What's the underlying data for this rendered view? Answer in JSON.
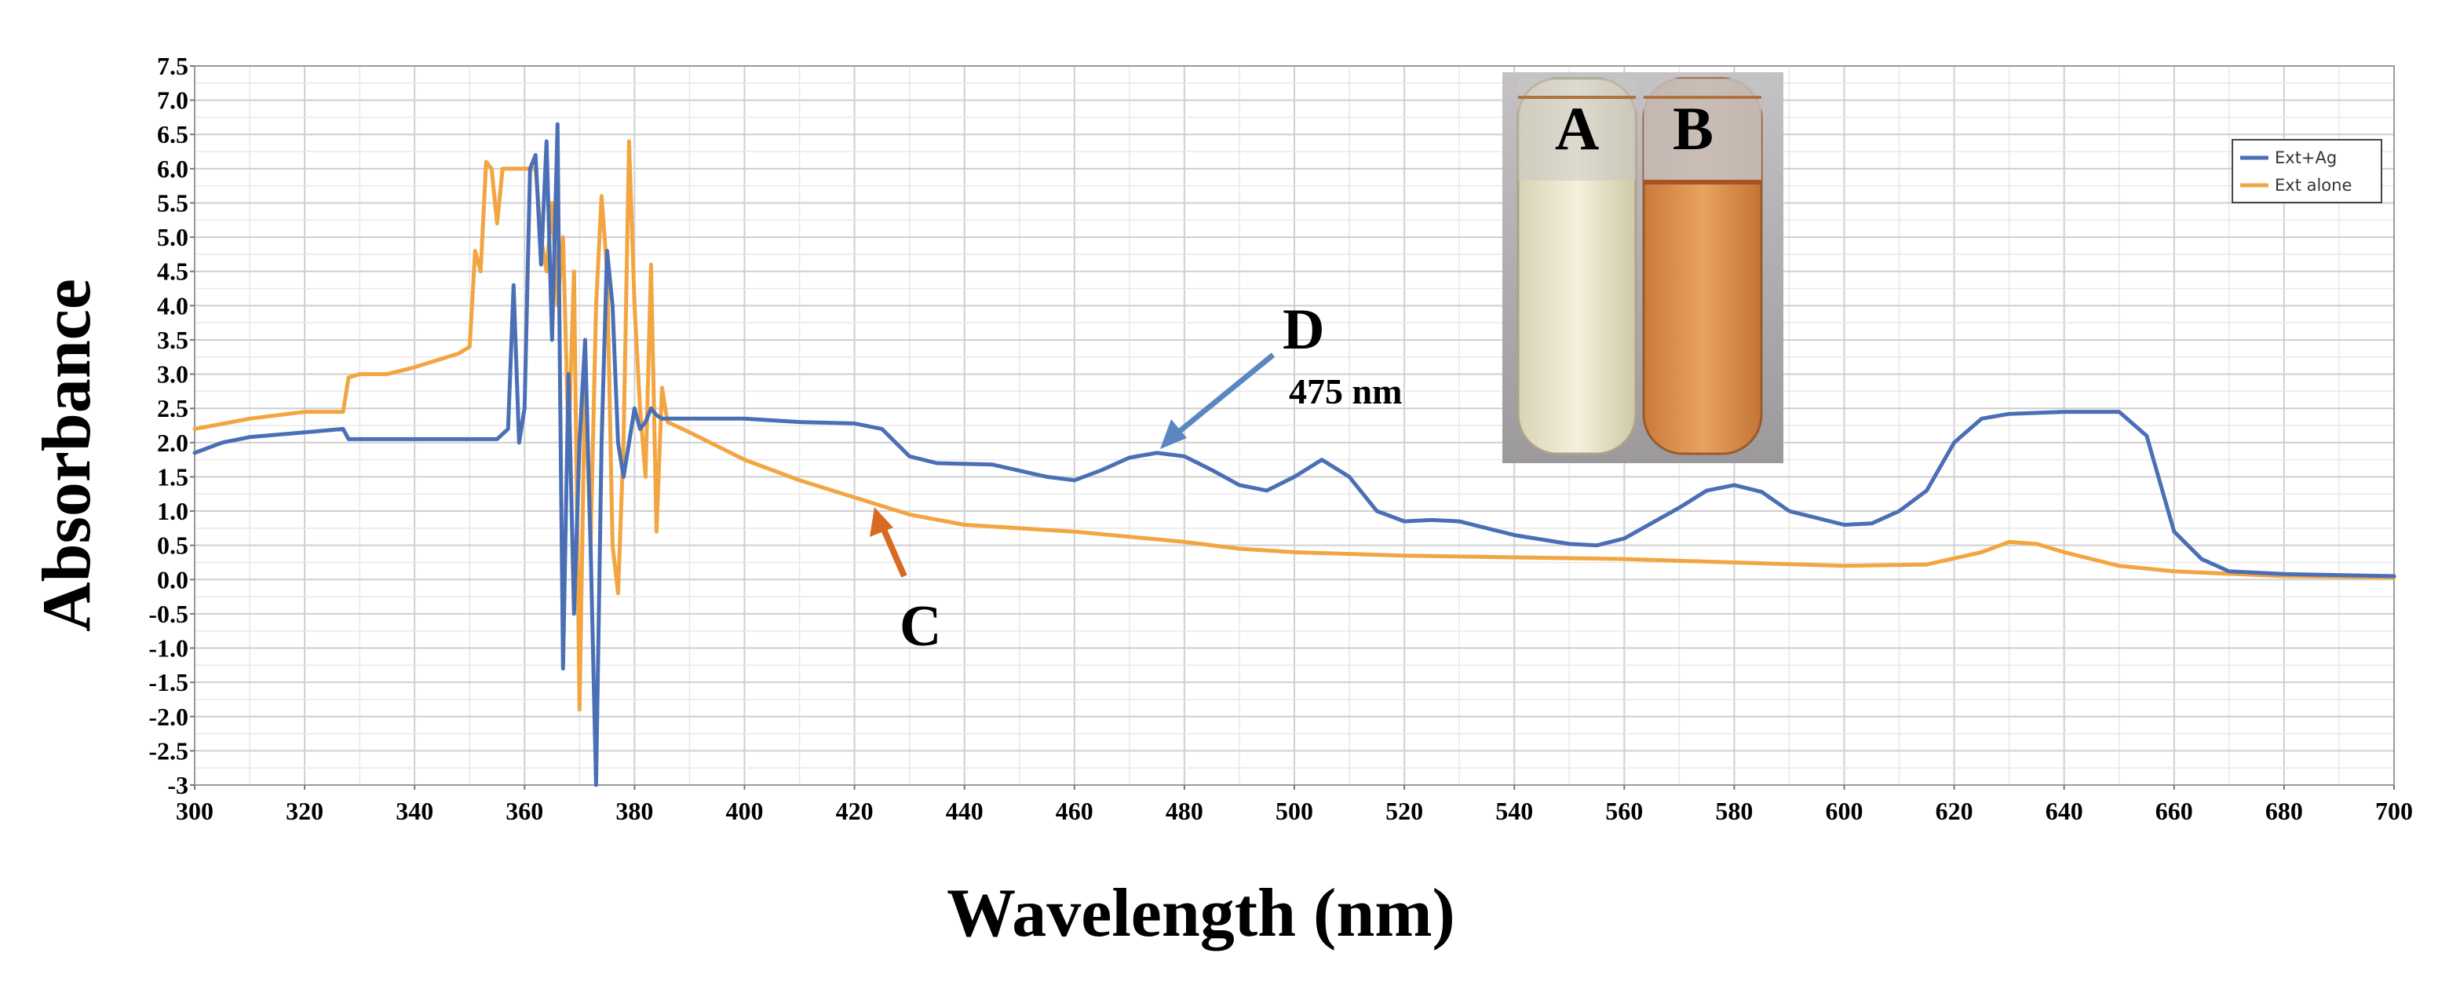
{
  "chart_data": {
    "type": "line",
    "xlabel": "Wavelength (nm)",
    "ylabel": "Absorbance",
    "xlim": [
      300,
      700
    ],
    "ylim": [
      -3,
      7.5
    ],
    "grid": true,
    "legend_position": "top-right",
    "x_ticks": [
      "300",
      "320",
      "340",
      "360",
      "380",
      "400",
      "420",
      "440",
      "460",
      "480",
      "500",
      "520",
      "540",
      "560",
      "580",
      "600",
      "620",
      "640",
      "660",
      "680",
      "700"
    ],
    "y_ticks": [
      "7.5",
      "7.0",
      "6.5",
      "6.0",
      "5.5",
      "5.0",
      "4.5",
      "4.0",
      "3.5",
      "3.0",
      "2.5",
      "2.0",
      "1.5",
      "1.0",
      "0.5",
      "0.0",
      "-0.5",
      "-1.0",
      "-1.5",
      "-2.0",
      "-2.5",
      "-3"
    ],
    "series": [
      {
        "name": "Ext+Ag",
        "color": "#4a6fb5",
        "points": [
          [
            300,
            1.85
          ],
          [
            305,
            2.0
          ],
          [
            310,
            2.08
          ],
          [
            320,
            2.15
          ],
          [
            327,
            2.2
          ],
          [
            328,
            2.05
          ],
          [
            335,
            2.05
          ],
          [
            345,
            2.05
          ],
          [
            355,
            2.05
          ],
          [
            357,
            2.2
          ],
          [
            358,
            4.3
          ],
          [
            359,
            2.0
          ],
          [
            360,
            2.5
          ],
          [
            361,
            6.0
          ],
          [
            362,
            6.2
          ],
          [
            363,
            4.6
          ],
          [
            364,
            6.4
          ],
          [
            365,
            3.5
          ],
          [
            366,
            6.65
          ],
          [
            366.5,
            2.5
          ],
          [
            367,
            -1.3
          ],
          [
            368,
            3.0
          ],
          [
            369,
            -0.5
          ],
          [
            370,
            2.0
          ],
          [
            371,
            3.5
          ],
          [
            372,
            0.5
          ],
          [
            373,
            -3.0
          ],
          [
            374,
            2.0
          ],
          [
            375,
            4.8
          ],
          [
            376,
            4.0
          ],
          [
            377,
            2.0
          ],
          [
            378,
            1.5
          ],
          [
            379,
            2.0
          ],
          [
            380,
            2.5
          ],
          [
            381,
            2.2
          ],
          [
            382,
            2.3
          ],
          [
            383,
            2.5
          ],
          [
            384,
            2.4
          ],
          [
            385,
            2.35
          ],
          [
            390,
            2.35
          ],
          [
            400,
            2.35
          ],
          [
            410,
            2.3
          ],
          [
            420,
            2.28
          ],
          [
            425,
            2.2
          ],
          [
            430,
            1.8
          ],
          [
            435,
            1.7
          ],
          [
            445,
            1.68
          ],
          [
            455,
            1.5
          ],
          [
            460,
            1.45
          ],
          [
            465,
            1.6
          ],
          [
            470,
            1.78
          ],
          [
            475,
            1.85
          ],
          [
            480,
            1.8
          ],
          [
            485,
            1.6
          ],
          [
            490,
            1.38
          ],
          [
            495,
            1.3
          ],
          [
            500,
            1.5
          ],
          [
            505,
            1.75
          ],
          [
            510,
            1.5
          ],
          [
            515,
            1.0
          ],
          [
            520,
            0.85
          ],
          [
            525,
            0.87
          ],
          [
            530,
            0.85
          ],
          [
            540,
            0.65
          ],
          [
            550,
            0.52
          ],
          [
            555,
            0.5
          ],
          [
            560,
            0.6
          ],
          [
            570,
            1.05
          ],
          [
            575,
            1.3
          ],
          [
            580,
            1.38
          ],
          [
            585,
            1.28
          ],
          [
            590,
            1.0
          ],
          [
            600,
            0.8
          ],
          [
            605,
            0.82
          ],
          [
            610,
            1.0
          ],
          [
            615,
            1.3
          ],
          [
            620,
            2.0
          ],
          [
            625,
            2.35
          ],
          [
            630,
            2.42
          ],
          [
            640,
            2.45
          ],
          [
            650,
            2.45
          ],
          [
            655,
            2.1
          ],
          [
            660,
            0.7
          ],
          [
            665,
            0.3
          ],
          [
            670,
            0.12
          ],
          [
            680,
            0.08
          ],
          [
            700,
            0.05
          ]
        ]
      },
      {
        "name": "Ext alone",
        "color": "#f2a540",
        "points": [
          [
            300,
            2.2
          ],
          [
            310,
            2.35
          ],
          [
            320,
            2.45
          ],
          [
            327,
            2.45
          ],
          [
            328,
            2.95
          ],
          [
            330,
            3.0
          ],
          [
            335,
            3.0
          ],
          [
            340,
            3.1
          ],
          [
            348,
            3.3
          ],
          [
            350,
            3.4
          ],
          [
            351,
            4.8
          ],
          [
            352,
            4.5
          ],
          [
            353,
            6.1
          ],
          [
            354,
            6.0
          ],
          [
            355,
            5.2
          ],
          [
            356,
            6.0
          ],
          [
            362,
            6.0
          ],
          [
            363,
            5.0
          ],
          [
            364,
            4.5
          ],
          [
            365,
            5.5
          ],
          [
            366,
            4.0
          ],
          [
            367,
            5.0
          ],
          [
            368,
            2.0
          ],
          [
            369,
            4.5
          ],
          [
            370,
            -1.9
          ],
          [
            371,
            3.0
          ],
          [
            372,
            0.5
          ],
          [
            373,
            4.0
          ],
          [
            374,
            5.6
          ],
          [
            375,
            4.5
          ],
          [
            376,
            0.5
          ],
          [
            377,
            -0.2
          ],
          [
            378,
            2.0
          ],
          [
            379,
            6.4
          ],
          [
            380,
            4.0
          ],
          [
            381,
            2.5
          ],
          [
            382,
            1.5
          ],
          [
            383,
            4.6
          ],
          [
            384,
            0.7
          ],
          [
            385,
            2.8
          ],
          [
            386,
            2.3
          ],
          [
            390,
            2.15
          ],
          [
            400,
            1.75
          ],
          [
            410,
            1.45
          ],
          [
            420,
            1.2
          ],
          [
            430,
            0.95
          ],
          [
            440,
            0.8
          ],
          [
            460,
            0.7
          ],
          [
            480,
            0.55
          ],
          [
            490,
            0.45
          ],
          [
            500,
            0.4
          ],
          [
            520,
            0.35
          ],
          [
            560,
            0.3
          ],
          [
            580,
            0.25
          ],
          [
            600,
            0.2
          ],
          [
            615,
            0.22
          ],
          [
            625,
            0.4
          ],
          [
            630,
            0.55
          ],
          [
            635,
            0.52
          ],
          [
            640,
            0.4
          ],
          [
            650,
            0.2
          ],
          [
            660,
            0.12
          ],
          [
            680,
            0.05
          ],
          [
            700,
            0.03
          ]
        ]
      }
    ],
    "annotations": {
      "d_label": "D",
      "d_wavelength": "475 nm",
      "c_label": "C",
      "tube_a": "A",
      "tube_b": "B"
    }
  }
}
